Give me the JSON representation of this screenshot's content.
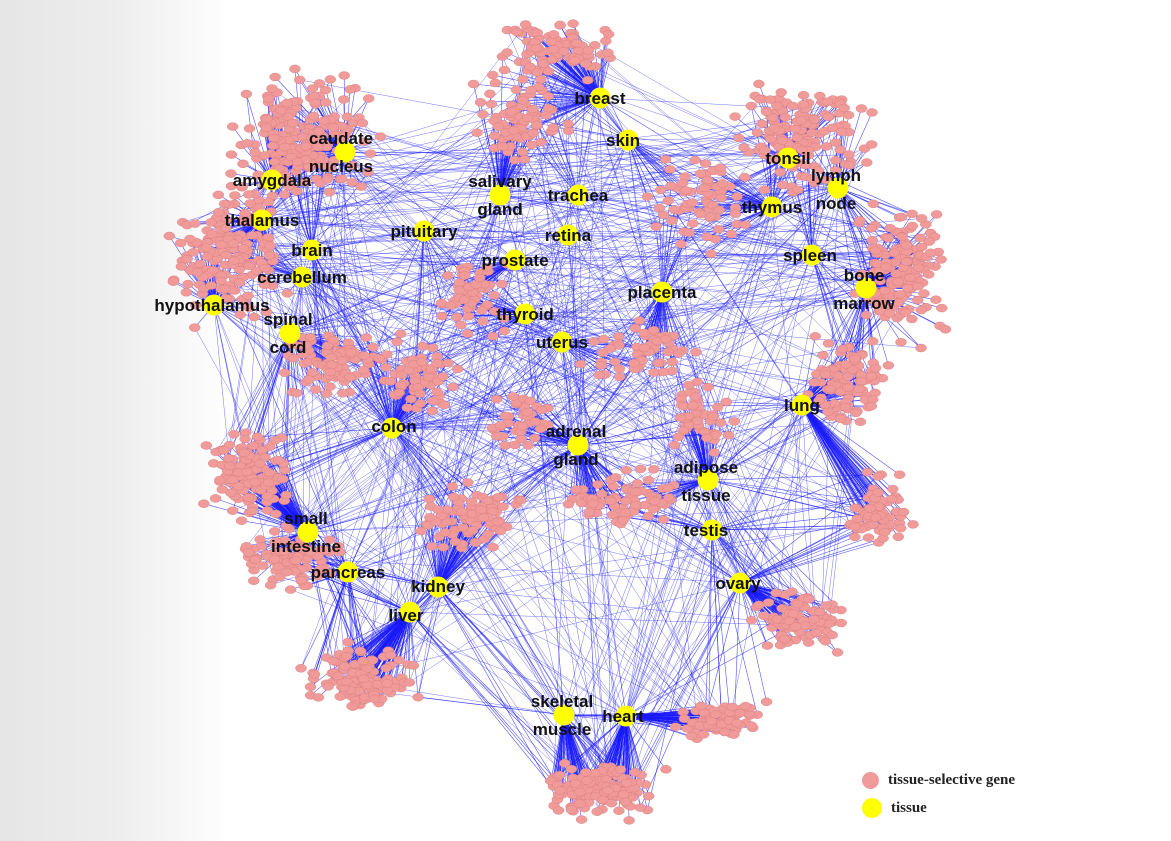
{
  "colors": {
    "gene_node": "#f09a9a",
    "gene_stroke": "#d77a7a",
    "tissue_node": "#ffff00",
    "edge": "#1a1aff",
    "label_text": "#111111"
  },
  "legend": {
    "gene_label": "tissue-selective gene",
    "tissue_label": "tissue"
  },
  "tissues": [
    {
      "name": "breast",
      "lines": [
        "breast"
      ]
    },
    {
      "name": "skin",
      "lines": [
        "skin"
      ]
    },
    {
      "name": "caudate nucleus",
      "lines": [
        "caudate",
        "nucleus"
      ]
    },
    {
      "name": "amygdala",
      "lines": [
        "amygdala"
      ]
    },
    {
      "name": "thalamus",
      "lines": [
        "thalamus"
      ]
    },
    {
      "name": "brain",
      "lines": [
        "brain"
      ]
    },
    {
      "name": "cerebellum",
      "lines": [
        "cerebellum"
      ]
    },
    {
      "name": "hypothalamus",
      "lines": [
        "hypothalamus"
      ]
    },
    {
      "name": "spinal cord",
      "lines": [
        "spinal",
        "cord"
      ]
    },
    {
      "name": "salivary gland",
      "lines": [
        "salivary",
        "gland"
      ]
    },
    {
      "name": "trachea",
      "lines": [
        "trachea"
      ]
    },
    {
      "name": "pituitary",
      "lines": [
        "pituitary"
      ]
    },
    {
      "name": "retina",
      "lines": [
        "retina"
      ]
    },
    {
      "name": "prostate",
      "lines": [
        "prostate"
      ]
    },
    {
      "name": "tonsil",
      "lines": [
        "tonsil"
      ]
    },
    {
      "name": "lymph node",
      "lines": [
        "lymph",
        "node"
      ]
    },
    {
      "name": "thymus",
      "lines": [
        "thymus"
      ]
    },
    {
      "name": "spleen",
      "lines": [
        "spleen"
      ]
    },
    {
      "name": "bone marrow",
      "lines": [
        "bone",
        "marrow"
      ]
    },
    {
      "name": "placenta",
      "lines": [
        "placenta"
      ]
    },
    {
      "name": "thyroid",
      "lines": [
        "thyroid"
      ]
    },
    {
      "name": "uterus",
      "lines": [
        "uterus"
      ]
    },
    {
      "name": "lung",
      "lines": [
        "lung"
      ]
    },
    {
      "name": "colon",
      "lines": [
        "colon"
      ]
    },
    {
      "name": "adrenal gland",
      "lines": [
        "adrenal",
        "gland"
      ]
    },
    {
      "name": "adipose tissue",
      "lines": [
        "adipose",
        "tissue"
      ]
    },
    {
      "name": "testis",
      "lines": [
        "testis"
      ]
    },
    {
      "name": "small intestine",
      "lines": [
        "small",
        "intestine"
      ]
    },
    {
      "name": "pancreas",
      "lines": [
        "pancreas"
      ]
    },
    {
      "name": "kidney",
      "lines": [
        "kidney"
      ]
    },
    {
      "name": "liver",
      "lines": [
        "liver"
      ]
    },
    {
      "name": "ovary",
      "lines": [
        "ovary"
      ]
    },
    {
      "name": "skeletal muscle",
      "lines": [
        "skeletal",
        "muscle"
      ]
    },
    {
      "name": "heart",
      "lines": [
        "heart"
      ]
    }
  ]
}
